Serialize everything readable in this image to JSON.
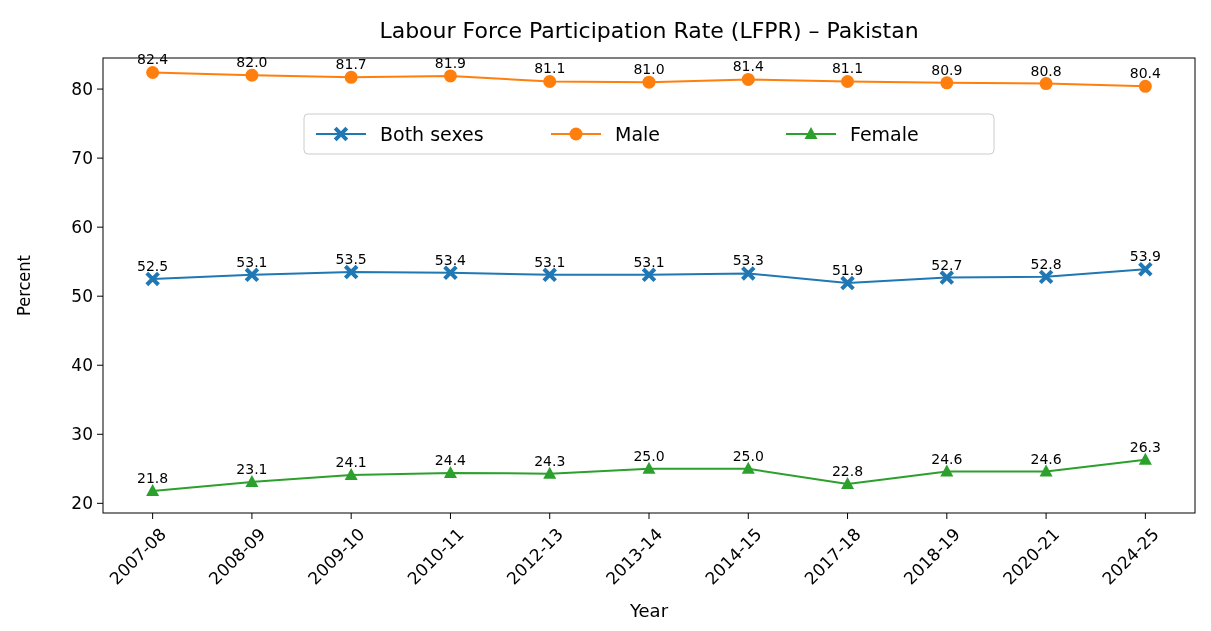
{
  "chart_data": {
    "type": "line",
    "title": "Labour Force Participation Rate (LFPR) – Pakistan",
    "xlabel": "Year",
    "ylabel": "Percent",
    "categories": [
      "2007-08",
      "2008-09",
      "2009-10",
      "2010-11",
      "2012-13",
      "2013-14",
      "2014-15",
      "2017-18",
      "2018-19",
      "2020-21",
      "2024-25"
    ],
    "series": [
      {
        "name": "Both sexes",
        "color": "#1f77b4",
        "marker": "cross",
        "values": [
          52.5,
          53.1,
          53.5,
          53.4,
          53.1,
          53.1,
          53.3,
          51.9,
          52.7,
          52.8,
          53.9
        ],
        "value_labels": [
          "52.5",
          "53.1",
          "53.5",
          "53.4",
          "53.1",
          "53.1",
          "53.3",
          "51.9",
          "52.7",
          "52.8",
          "53.9"
        ]
      },
      {
        "name": "Male",
        "color": "#ff7f0e",
        "marker": "circle",
        "values": [
          82.4,
          82.0,
          81.7,
          81.9,
          81.1,
          81.0,
          81.4,
          81.1,
          80.9,
          80.8,
          80.4
        ],
        "value_labels": [
          "82.4",
          "82.0",
          "81.7",
          "81.9",
          "81.1",
          "81.0",
          "81.4",
          "81.1",
          "80.9",
          "80.8",
          "80.4"
        ]
      },
      {
        "name": "Female",
        "color": "#2ca02c",
        "marker": "triangle",
        "values": [
          21.8,
          23.1,
          24.1,
          24.4,
          24.3,
          25.0,
          25.0,
          22.8,
          24.6,
          24.6,
          26.3
        ],
        "value_labels": [
          "21.8",
          "23.1",
          "24.1",
          "24.4",
          "24.3",
          "25.0",
          "25.0",
          "22.8",
          "24.6",
          "24.6",
          "26.3"
        ]
      }
    ],
    "ylim": [
      18.6,
      84.5
    ],
    "yticks": [
      20,
      30,
      40,
      50,
      60,
      70,
      80
    ],
    "legend": "top",
    "grid": false,
    "line_style": "solid"
  }
}
